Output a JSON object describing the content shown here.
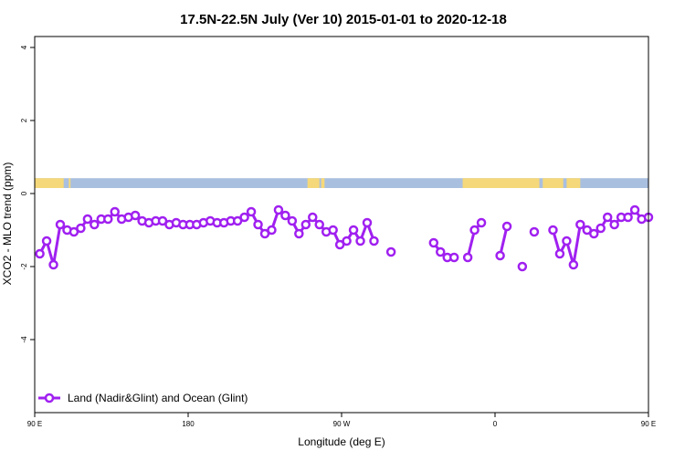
{
  "chart_data": {
    "type": "line",
    "title": "17.5N-22.5N July (Ver 10)   2015-01-01 to 2020-12-18",
    "xlabel": "Longitude (deg E)",
    "ylabel": "XCO2 - MLO trend (ppm)",
    "xlim": [
      90,
      450
    ],
    "ylim": [
      -6,
      4.3
    ],
    "x_ticks": [
      {
        "value": 90,
        "label": "90 E"
      },
      {
        "value": 180,
        "label": "180"
      },
      {
        "value": 270,
        "label": "90 W"
      },
      {
        "value": 360,
        "label": "0"
      },
      {
        "value": 450,
        "label": "90 E"
      },
      {
        "value": 540,
        "label": "180"
      }
    ],
    "y_ticks": [
      {
        "value": 4,
        "label": "4"
      },
      {
        "value": 2,
        "label": "2"
      },
      {
        "value": 0,
        "label": "0"
      },
      {
        "value": -2,
        "label": "-2"
      },
      {
        "value": -4,
        "label": "-4"
      }
    ],
    "grid": false,
    "legend_position": "bottom-left",
    "series": [
      {
        "name": "Land (Nadir&Glint) and Ocean (Glint)",
        "color": "#a020f0",
        "segments": [
          [
            [
              93,
              -1.65
            ],
            [
              97,
              -1.3
            ],
            [
              101,
              -1.95
            ],
            [
              105,
              -0.85
            ],
            [
              109,
              -1.0
            ],
            [
              113,
              -1.05
            ],
            [
              117,
              -0.95
            ],
            [
              121,
              -0.7
            ],
            [
              125,
              -0.85
            ],
            [
              129,
              -0.7
            ],
            [
              133,
              -0.7
            ],
            [
              137,
              -0.5
            ],
            [
              141,
              -0.7
            ],
            [
              145,
              -0.65
            ],
            [
              149,
              -0.6
            ],
            [
              153,
              -0.75
            ],
            [
              157,
              -0.8
            ],
            [
              161,
              -0.75
            ],
            [
              165,
              -0.75
            ],
            [
              169,
              -0.85
            ],
            [
              173,
              -0.8
            ],
            [
              177,
              -0.85
            ],
            [
              181,
              -0.85
            ],
            [
              185,
              -0.85
            ],
            [
              189,
              -0.8
            ],
            [
              193,
              -0.75
            ],
            [
              197,
              -0.8
            ],
            [
              201,
              -0.8
            ],
            [
              205,
              -0.75
            ],
            [
              209,
              -0.75
            ],
            [
              213,
              -0.65
            ],
            [
              217,
              -0.5
            ],
            [
              221,
              -0.85
            ],
            [
              225,
              -1.1
            ],
            [
              229,
              -1.0
            ],
            [
              233,
              -0.45
            ],
            [
              237,
              -0.6
            ],
            [
              241,
              -0.75
            ],
            [
              245,
              -1.1
            ],
            [
              249,
              -0.85
            ],
            [
              253,
              -0.65
            ],
            [
              257,
              -0.85
            ],
            [
              261,
              -1.05
            ],
            [
              265,
              -1.0
            ],
            [
              269,
              -1.4
            ],
            [
              273,
              -1.3
            ],
            [
              277,
              -1.0
            ],
            [
              281,
              -1.3
            ],
            [
              285,
              -0.8
            ],
            [
              289,
              -1.3
            ]
          ],
          [
            [
              299,
              -1.6
            ]
          ],
          [
            [
              324,
              -1.35
            ],
            [
              328,
              -1.6
            ],
            [
              332,
              -1.75
            ],
            [
              336,
              -1.75
            ]
          ],
          [
            [
              344,
              -1.75
            ],
            [
              348,
              -1.0
            ],
            [
              352,
              -0.8
            ]
          ],
          [
            [
              363,
              -1.7
            ],
            [
              367,
              -0.9
            ]
          ],
          [
            [
              376,
              -2.0
            ]
          ],
          [
            [
              383,
              -1.05
            ]
          ],
          [
            [
              394,
              -1.0
            ],
            [
              398,
              -1.65
            ],
            [
              402,
              -1.3
            ],
            [
              406,
              -1.95
            ],
            [
              410,
              -0.85
            ],
            [
              414,
              -1.0
            ],
            [
              418,
              -1.1
            ],
            [
              422,
              -0.95
            ],
            [
              426,
              -0.65
            ],
            [
              430,
              -0.85
            ],
            [
              434,
              -0.65
            ],
            [
              438,
              -0.65
            ],
            [
              442,
              -0.45
            ],
            [
              446,
              -0.7
            ],
            [
              450,
              -0.65
            ]
          ]
        ]
      }
    ],
    "land_ocean_band": {
      "y_range": [
        0.15,
        0.42
      ],
      "ocean_color": "#a9bfdf",
      "land_color": "#f5d87a",
      "land_intervals": [
        [
          90,
          107
        ],
        [
          110,
          111
        ],
        [
          250,
          257
        ],
        [
          258,
          260
        ],
        [
          341,
          386
        ],
        [
          388,
          400
        ],
        [
          402,
          410
        ]
      ]
    }
  }
}
